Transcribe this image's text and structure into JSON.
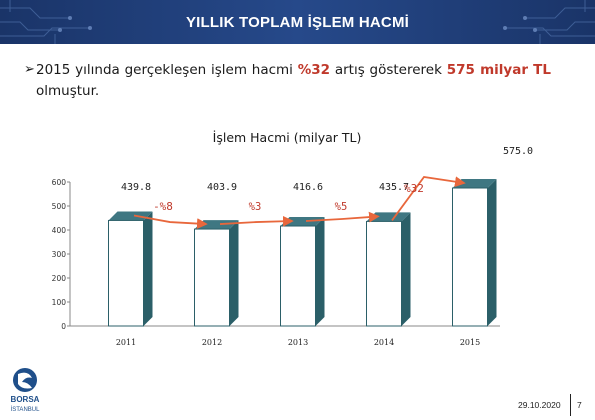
{
  "header": {
    "title": "YILLIK TOPLAM İŞLEM HACMİ"
  },
  "summary": {
    "part1": "2015 yılında gerçekleşen işlem hacmi ",
    "pct": "%32",
    "part2": " artış göstererek ",
    "amount": "575 milyar TL",
    "part3": " olmuştur."
  },
  "chart_data": {
    "type": "bar",
    "title": "İşlem Hacmi (milyar TL)",
    "categories": [
      "2011",
      "2012",
      "2013",
      "2014",
      "2015"
    ],
    "values": [
      439.8,
      403.9,
      416.6,
      435.7,
      575.0
    ],
    "value_labels": [
      "439.8",
      "403.9",
      "416.6",
      "435.7",
      "575.0"
    ],
    "changes": [
      "-%8",
      "%3",
      "%5",
      "%32"
    ],
    "yticks": [
      0,
      100,
      200,
      300,
      400,
      500,
      600
    ],
    "ylim": [
      0,
      600
    ],
    "colors": {
      "bar": "#ffffff",
      "shadow": "#2b5f68",
      "arrow": "#e8673c",
      "change_text": "#c0392b"
    }
  },
  "footer": {
    "logo_text_1": "BORSA",
    "logo_text_2": "İSTANBUL",
    "date": "29.10.2020",
    "page": "7"
  }
}
